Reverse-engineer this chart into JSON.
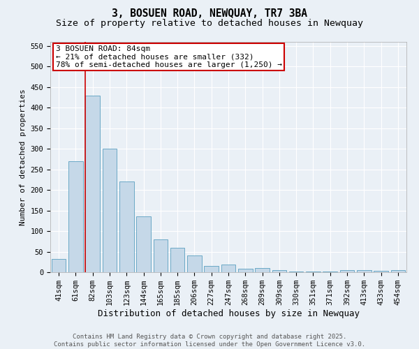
{
  "title": "3, BOSUEN ROAD, NEWQUAY, TR7 3BA",
  "subtitle": "Size of property relative to detached houses in Newquay",
  "xlabel": "Distribution of detached houses by size in Newquay",
  "ylabel": "Number of detached properties",
  "categories": [
    "41sqm",
    "61sqm",
    "82sqm",
    "103sqm",
    "123sqm",
    "144sqm",
    "165sqm",
    "185sqm",
    "206sqm",
    "227sqm",
    "247sqm",
    "268sqm",
    "289sqm",
    "309sqm",
    "330sqm",
    "351sqm",
    "371sqm",
    "392sqm",
    "413sqm",
    "433sqm",
    "454sqm"
  ],
  "values": [
    32,
    270,
    430,
    300,
    220,
    135,
    80,
    60,
    40,
    15,
    18,
    8,
    11,
    5,
    2,
    2,
    2,
    5,
    5,
    3,
    5
  ],
  "bar_color": "#c5d8e8",
  "bar_edge_color": "#5a9fc0",
  "vline_color": "#cc0000",
  "vline_x": 1.575,
  "annotation_text": "3 BOSUEN ROAD: 84sqm\n← 21% of detached houses are smaller (332)\n78% of semi-detached houses are larger (1,250) →",
  "annotation_box_color": "#ffffff",
  "annotation_box_edgecolor": "#cc0000",
  "ylim": [
    0,
    560
  ],
  "yticks": [
    0,
    50,
    100,
    150,
    200,
    250,
    300,
    350,
    400,
    450,
    500,
    550
  ],
  "background_color": "#eaf0f6",
  "grid_color": "#ffffff",
  "footer_text": "Contains HM Land Registry data © Crown copyright and database right 2025.\nContains public sector information licensed under the Open Government Licence v3.0.",
  "title_fontsize": 10.5,
  "subtitle_fontsize": 9.5,
  "xlabel_fontsize": 9,
  "ylabel_fontsize": 8,
  "tick_fontsize": 7.5,
  "annotation_fontsize": 8,
  "footer_fontsize": 6.5
}
